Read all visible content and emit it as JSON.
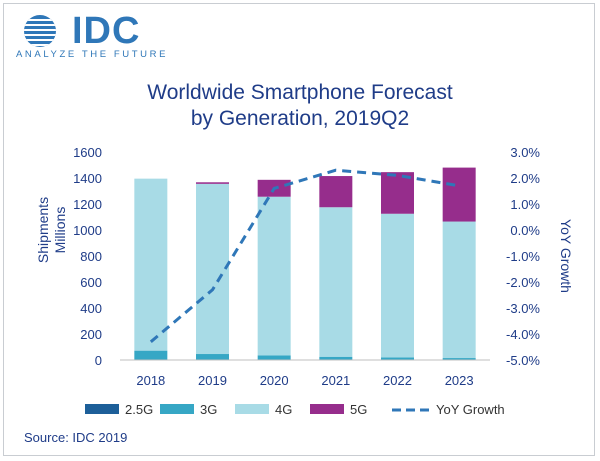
{
  "logo": {
    "wordmark": "IDC",
    "tagline": "ANALYZE THE FUTURE"
  },
  "source": "Source: IDC 2019",
  "colors": {
    "2.5G": "#1d5f99",
    "3G": "#36a7c5",
    "4G": "#a8dbe6",
    "5G": "#962d8c",
    "yoy": "#2f77b8",
    "title": "#1f3c88"
  },
  "chart_data": {
    "type": "bar",
    "stacked": true,
    "title_line1": "Worldwide Smartphone Forecast",
    "title_line2": "by Generation, 2019Q2",
    "categories": [
      "2018",
      "2019",
      "2020",
      "2021",
      "2022",
      "2023"
    ],
    "series": [
      {
        "name": "2.5G",
        "values": [
          2,
          1,
          1,
          0,
          0,
          0
        ]
      },
      {
        "name": "3G",
        "values": [
          70,
          45,
          35,
          25,
          20,
          15
        ]
      },
      {
        "name": "4G",
        "values": [
          1323,
          1309,
          1220,
          1150,
          1105,
          1050
        ]
      },
      {
        "name": "5G",
        "values": [
          0,
          12,
          130,
          240,
          320,
          415
        ]
      }
    ],
    "line_series": {
      "name": "YoY Growth",
      "axis": "right",
      "values": [
        -4.3,
        -2.3,
        1.6,
        2.3,
        2.1,
        1.7
      ]
    },
    "ylabel_line1": "Shipments",
    "ylabel_line2": "Millions",
    "y2label": "YoY Growth",
    "ylim": [
      0,
      1600
    ],
    "yticks": [
      "0",
      "200",
      "400",
      "600",
      "800",
      "1000",
      "1200",
      "1400",
      "1600"
    ],
    "y2lim": [
      -5.0,
      3.0
    ],
    "y2ticks": [
      "-5.0%",
      "-4.0%",
      "-3.0%",
      "-2.0%",
      "-1.0%",
      "0.0%",
      "1.0%",
      "2.0%",
      "3.0%"
    ],
    "legend": [
      "2.5G",
      "3G",
      "4G",
      "5G",
      "YoY Growth"
    ],
    "legend_position": "bottom"
  }
}
